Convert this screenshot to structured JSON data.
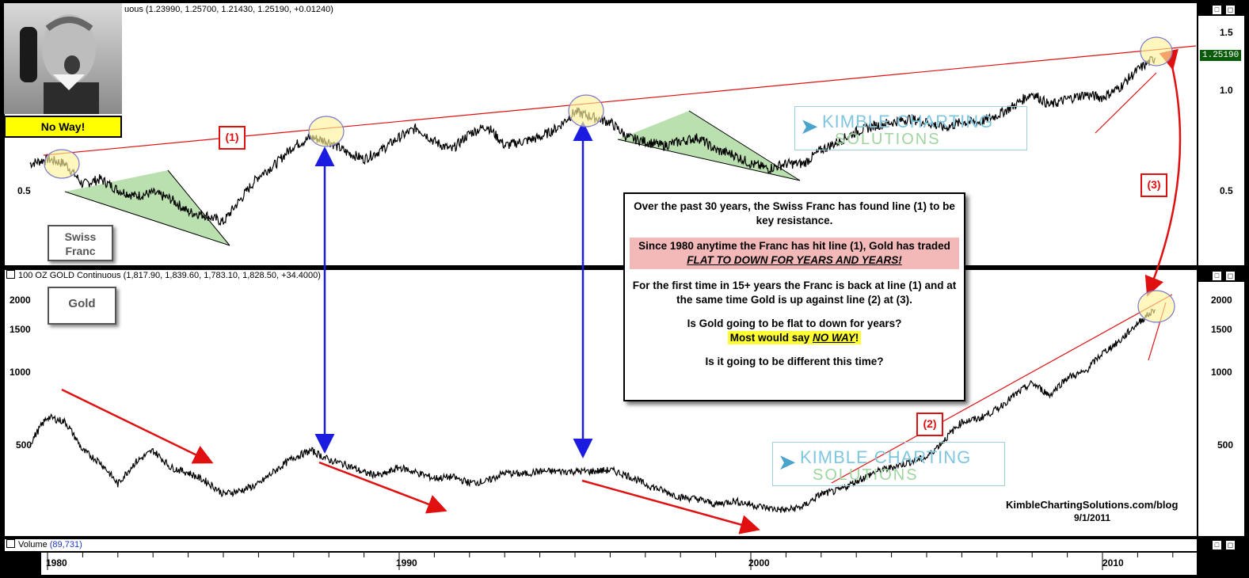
{
  "top_pane": {
    "title": "uous (1.23990, 1.25700, 1.21430, 1.25190, +0.01240)",
    "last_price": "1.25190",
    "y_ticks": [
      "1.5",
      "1.0",
      "0.5"
    ],
    "y_ticks_left": [
      "0.5"
    ],
    "label": "Swiss Franc"
  },
  "mid_pane": {
    "title": "100 OZ GOLD Continuous (1,817.90, 1,839.60, 1,783.10, 1,828.50, +34.4000)",
    "y_ticks": [
      "2000",
      "1500",
      "1000",
      "500"
    ],
    "y_ticks_left": [
      "2000",
      "1500",
      "1000",
      "500"
    ],
    "label": "Gold"
  },
  "bottom_pane": {
    "title": "Volume",
    "value": "(89,731)"
  },
  "x_axis": {
    "years": [
      "1980",
      "1990",
      "2000",
      "2010"
    ]
  },
  "thumbnail": {
    "caption": "No Way!"
  },
  "markers": {
    "m1": "(1)",
    "m2": "(2)",
    "m3": "(3)"
  },
  "textbox": {
    "p1": "Over the past 30 years, the Swiss Franc has found line (1) to be key resistance.",
    "p2_a": "Since 1980 anytime the Franc has hit line (1), Gold has traded",
    "p2_b": "FLAT TO DOWN FOR YEARS AND YEARS!",
    "p3": "For the first time in 15+ years the Franc is back at line (1) and at the same time Gold is up against line (2) at (3).",
    "p4": "Is Gold going to be flat to down for years?",
    "p5_a": "Most would say",
    "p5_b": "NO WAY",
    "p5_c": "!",
    "p6": "Is it going to be different this time?"
  },
  "watermark": {
    "line1": "KIMBLE CHARTING",
    "line2": "SOLUTIONS"
  },
  "credit": {
    "site": "KimbleChartingSolutions.com/blog",
    "date": "9/1/2011"
  },
  "colors": {
    "resistance": "#e01010",
    "arrow_blue": "#1c1ce0",
    "triangle": "#a8d89a",
    "highlight": "#fff39a"
  },
  "chart_data": [
    {
      "type": "line",
      "title": "Swiss Franc",
      "scale": "log",
      "ylim": [
        0.4,
        1.6
      ],
      "x": [
        1979.5,
        1980,
        1980.5,
        1981,
        1981.5,
        1982,
        1982.5,
        1983,
        1983.5,
        1984,
        1984.5,
        1985,
        1985.5,
        1986,
        1986.5,
        1987,
        1987.5,
        1988,
        1988.5,
        1989,
        1989.5,
        1990,
        1990.5,
        1991,
        1991.5,
        1992,
        1992.5,
        1993,
        1993.5,
        1994,
        1994.5,
        1995,
        1995.5,
        1996,
        1996.5,
        1997,
        1997.5,
        1998,
        1998.5,
        1999,
        1999.5,
        2000,
        2000.5,
        2001,
        2001.5,
        2002,
        2002.5,
        2003,
        2003.5,
        2004,
        2004.5,
        2005,
        2005.5,
        2006,
        2006.5,
        2007,
        2007.5,
        2008,
        2008.5,
        2009,
        2009.5,
        2010,
        2010.5,
        2011,
        2011.5
      ],
      "y": [
        0.6,
        0.62,
        0.6,
        0.52,
        0.54,
        0.5,
        0.48,
        0.49,
        0.47,
        0.43,
        0.42,
        0.4,
        0.47,
        0.55,
        0.6,
        0.68,
        0.72,
        0.7,
        0.65,
        0.62,
        0.66,
        0.72,
        0.77,
        0.7,
        0.66,
        0.74,
        0.78,
        0.68,
        0.7,
        0.72,
        0.77,
        0.86,
        0.83,
        0.8,
        0.72,
        0.7,
        0.68,
        0.7,
        0.72,
        0.66,
        0.64,
        0.6,
        0.58,
        0.6,
        0.6,
        0.66,
        0.7,
        0.75,
        0.78,
        0.8,
        0.82,
        0.8,
        0.77,
        0.8,
        0.8,
        0.84,
        0.9,
        0.98,
        0.9,
        0.94,
        0.97,
        0.95,
        1.02,
        1.15,
        1.25
      ]
    },
    {
      "type": "line",
      "title": "Gold",
      "scale": "log",
      "ylim": [
        250,
        2200
      ],
      "x": [
        1979.5,
        1980,
        1980.5,
        1981,
        1981.5,
        1982,
        1982.5,
        1983,
        1983.5,
        1984,
        1984.5,
        1985,
        1985.5,
        1986,
        1986.5,
        1987,
        1987.5,
        1988,
        1988.5,
        1989,
        1989.5,
        1990,
        1990.5,
        1991,
        1991.5,
        1992,
        1992.5,
        1993,
        1993.5,
        1994,
        1994.5,
        1995,
        1995.5,
        1996,
        1996.5,
        1997,
        1997.5,
        1998,
        1998.5,
        1999,
        1999.5,
        2000,
        2000.5,
        2001,
        2001.5,
        2002,
        2002.5,
        2003,
        2003.5,
        2004,
        2004.5,
        2005,
        2005.5,
        2006,
        2006.5,
        2007,
        2007.5,
        2008,
        2008.5,
        2009,
        2009.5,
        2010,
        2010.5,
        2011,
        2011.5
      ],
      "y": [
        500,
        650,
        620,
        470,
        420,
        340,
        420,
        470,
        400,
        380,
        350,
        310,
        320,
        340,
        390,
        440,
        470,
        430,
        410,
        380,
        370,
        400,
        380,
        360,
        365,
        345,
        350,
        380,
        375,
        385,
        385,
        385,
        385,
        390,
        370,
        340,
        320,
        300,
        295,
        280,
        290,
        280,
        270,
        265,
        275,
        310,
        320,
        350,
        380,
        400,
        420,
        440,
        520,
        620,
        640,
        700,
        800,
        900,
        800,
        950,
        1000,
        1200,
        1350,
        1600,
        1828.5
      ]
    }
  ]
}
